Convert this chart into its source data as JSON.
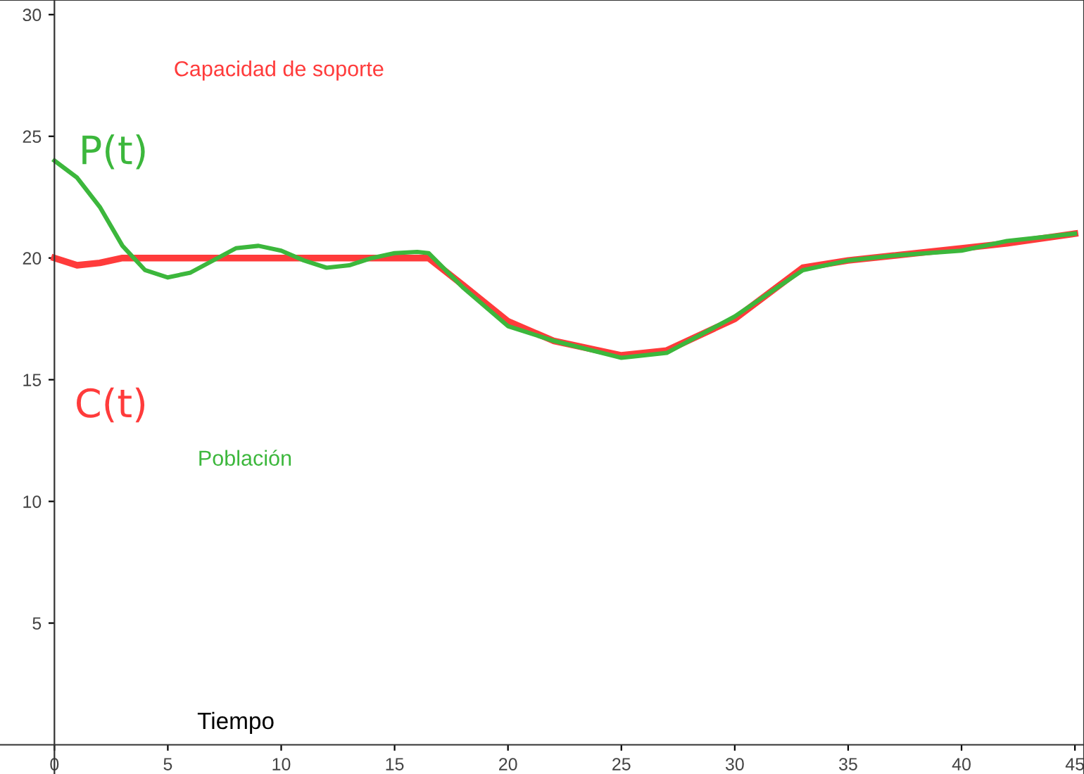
{
  "chart_data": {
    "type": "line",
    "title": "Capacidad de soporte",
    "subtitle": "Población",
    "xlabel": "Tiempo",
    "xlim": [
      -2.4,
      45.4
    ],
    "ylim": [
      -1.2,
      30.6
    ],
    "xticks": [
      0,
      5,
      10,
      15,
      20,
      25,
      30,
      35,
      40,
      45
    ],
    "yticks": [
      5,
      10,
      15,
      20,
      25,
      30
    ],
    "grid": false,
    "legend": false,
    "marker": "none",
    "line_style": "solid",
    "series": [
      {
        "name": "C(t)",
        "color": "#ff3b3b",
        "x": [
          0,
          1,
          2,
          3,
          5,
          10,
          16.5,
          18,
          20,
          22,
          25,
          27,
          30,
          33,
          35,
          37,
          40,
          42,
          45
        ],
        "values": [
          20,
          19.7,
          19.8,
          20,
          20,
          20,
          20,
          18.9,
          17.4,
          16.6,
          16.0,
          16.2,
          17.5,
          19.6,
          19.9,
          20.1,
          20.4,
          20.6,
          21
        ]
      },
      {
        "name": "P(t)",
        "color": "#3cb73c",
        "x": [
          0,
          1,
          2,
          3,
          4,
          5,
          6,
          7,
          8,
          9,
          10,
          11,
          12,
          13,
          14,
          15,
          16,
          16.5,
          18,
          20,
          22,
          25,
          27,
          30,
          33,
          35,
          37,
          40,
          42,
          45
        ],
        "values": [
          24,
          23.3,
          22.1,
          20.5,
          19.5,
          19.2,
          19.4,
          19.9,
          20.4,
          20.5,
          20.3,
          19.9,
          19.6,
          19.7,
          20.0,
          20.2,
          20.25,
          20.2,
          18.8,
          17.2,
          16.6,
          15.9,
          16.1,
          17.6,
          19.5,
          19.9,
          20.1,
          20.3,
          20.7,
          21.0
        ]
      }
    ]
  }
}
